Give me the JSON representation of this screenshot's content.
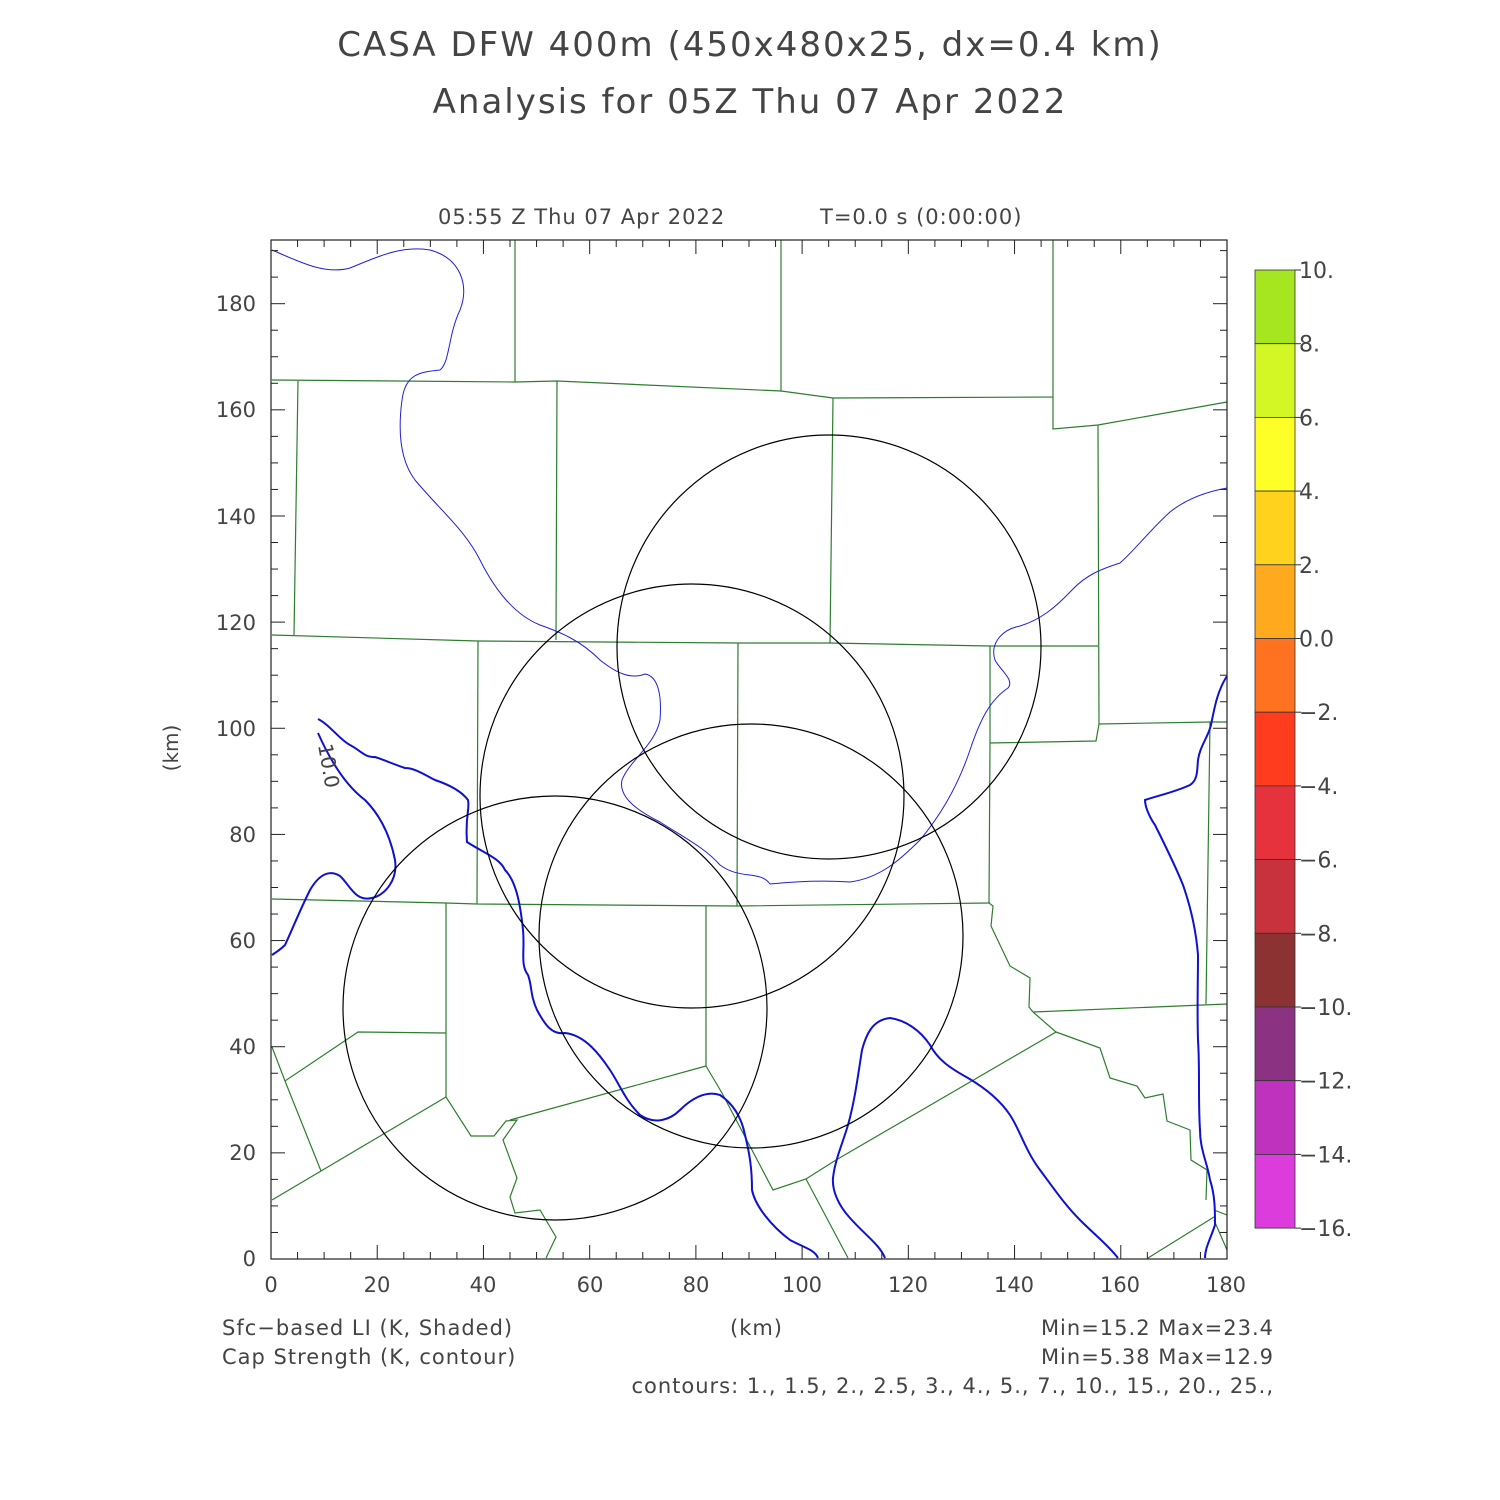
{
  "header": {
    "title_line1": "CASA DFW 400m (450x480x25, dx=0.4 km)",
    "title_line2": "Analysis for 05Z Thu 07 Apr 2022",
    "valid_time": "05:55 Z Thu 07 Apr 2022",
    "forecast_time": "T=0.0 s (0:00:00)"
  },
  "axes": {
    "x_label": "(km)",
    "y_label": "(km)",
    "x_ticks": [
      "0",
      "20",
      "40",
      "60",
      "80",
      "100",
      "120",
      "140",
      "160",
      "180"
    ],
    "y_ticks": [
      "0",
      "20",
      "40",
      "60",
      "80",
      "100",
      "120",
      "140",
      "160",
      "180"
    ],
    "xlim": [
      0,
      180
    ],
    "ylim": [
      0,
      192
    ]
  },
  "colorbar": {
    "labels": [
      "10.",
      "8.",
      "6.",
      "4.",
      "2.",
      "0.0",
      "−2.",
      "−4.",
      "−6.",
      "−8.",
      "−10.",
      "−12.",
      "−14.",
      "−16."
    ],
    "colors": [
      "#a6e620",
      "#d2f724",
      "#ffff28",
      "#ffd21e",
      "#ffa91e",
      "#ff7320",
      "#ff3c1e",
      "#e6323c",
      "#c8323c",
      "#8c3232",
      "#8c3282",
      "#be32be",
      "#dc3cdc"
    ]
  },
  "map": {
    "county_line_color": "#2e7d2e",
    "contour_color": "#1010d0",
    "radar_ring_color": "#000000",
    "contour_label": "10.0",
    "radar_rings": [
      {
        "x": 106,
        "y": 115,
        "r": 40
      },
      {
        "x": 79,
        "y": 87,
        "r": 40
      },
      {
        "x": 90,
        "y": 61,
        "r": 40
      },
      {
        "x": 54,
        "y": 47,
        "r": 40
      }
    ]
  },
  "footer": {
    "shaded_field": "Sfc−based LI (K, Shaded)",
    "shaded_range": "Min=15.2 Max=23.4",
    "contour_field": "Cap Strength (K, contour)",
    "contour_range": "Min=5.38 Max=12.9",
    "contours_list": "contours: 1., 1.5, 2., 2.5, 3., 4., 5., 7., 10., 15., 20., 25.,",
    "x_unit": "(km)"
  }
}
